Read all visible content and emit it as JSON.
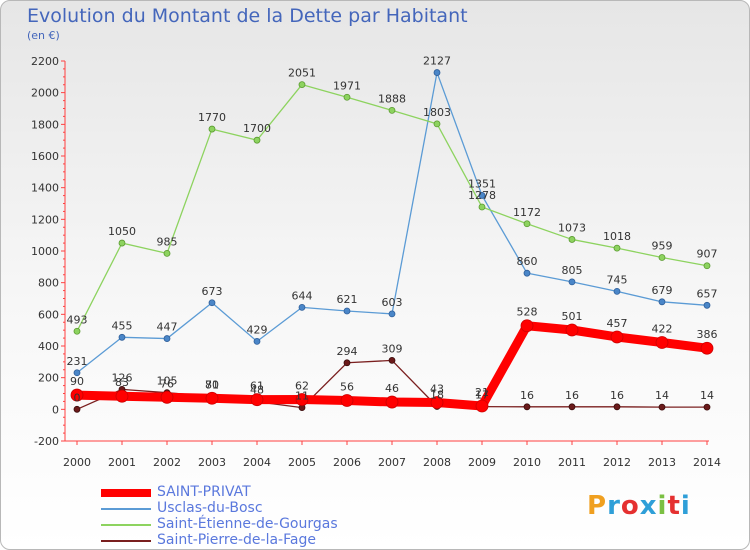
{
  "title": "Evolution du Montant de la Dette par Habitant",
  "subtitle": "(en €)",
  "logo": {
    "text": "Proxiti",
    "colors": [
      "#f0a020",
      "#2f9fd8",
      "#e53030",
      "#2f9fd8",
      "#7bc043",
      "#e53030",
      "#2f9fd8"
    ]
  },
  "chart_data": {
    "type": "line",
    "title": "Evolution du Montant de la Dette par Habitant",
    "ylabel": "(en €)",
    "x": [
      2000,
      2001,
      2002,
      2003,
      2004,
      2005,
      2006,
      2007,
      2008,
      2009,
      2010,
      2011,
      2012,
      2013,
      2014
    ],
    "ylim": [
      -200,
      2200
    ],
    "yticks": [
      -200,
      0,
      200,
      400,
      600,
      800,
      1000,
      1200,
      1400,
      1600,
      1800,
      2000,
      2200
    ],
    "grid": false,
    "legend_position": "bottom-left",
    "series": [
      {
        "name": "SAINT-PRIVAT",
        "color": "#ff0000",
        "values": [
          90,
          83,
          76,
          70,
          61,
          62,
          56,
          46,
          43,
          21,
          528,
          501,
          457,
          422,
          386
        ]
      },
      {
        "name": "Usclas-du-Bosc",
        "color": "#5b9bd5",
        "values": [
          231,
          455,
          447,
          673,
          429,
          644,
          621,
          603,
          2127,
          1351,
          860,
          805,
          745,
          679,
          657
        ]
      },
      {
        "name": "Saint-Étienne-de-Gourgas",
        "color": "#8dd35f",
        "values": [
          493,
          1050,
          985,
          1770,
          1700,
          2051,
          1971,
          1888,
          1803,
          1278,
          1172,
          1073,
          1018,
          959,
          907
        ]
      },
      {
        "name": "Saint-Pierre-de-la-Fage",
        "color": "#7a1f1f",
        "values": [
          0,
          126,
          105,
          81,
          48,
          11,
          294,
          309,
          18,
          17,
          16,
          16,
          16,
          14,
          14
        ]
      }
    ]
  }
}
